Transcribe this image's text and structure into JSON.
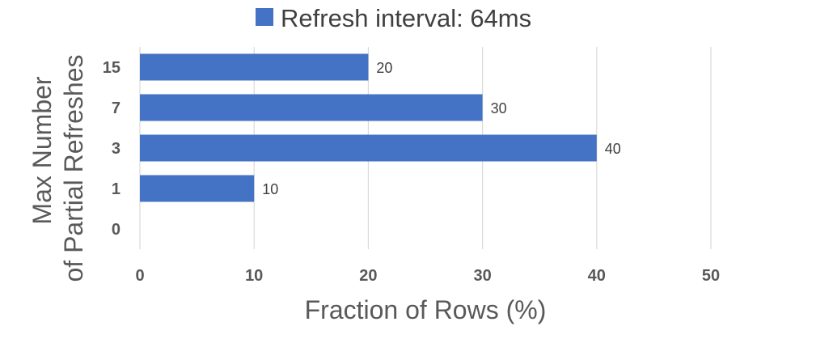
{
  "chart_data": {
    "type": "bar",
    "orientation": "horizontal",
    "categories": [
      "0",
      "1",
      "3",
      "7",
      "15"
    ],
    "series": [
      {
        "name": "Refresh interval: 64ms",
        "values": [
          null,
          10,
          40,
          30,
          20
        ],
        "color": "#4472c4"
      }
    ],
    "data_labels": [
      "",
      "10",
      "40",
      "30",
      "20"
    ],
    "xlabel": "Fraction of Rows (%)",
    "ylabel_lines": [
      "Max Number",
      "of Partial Refreshes"
    ],
    "x_ticks": [
      "0",
      "10",
      "20",
      "30",
      "40",
      "50"
    ],
    "xlim": [
      0,
      50
    ],
    "grid": "vertical",
    "legend_position": "top"
  }
}
